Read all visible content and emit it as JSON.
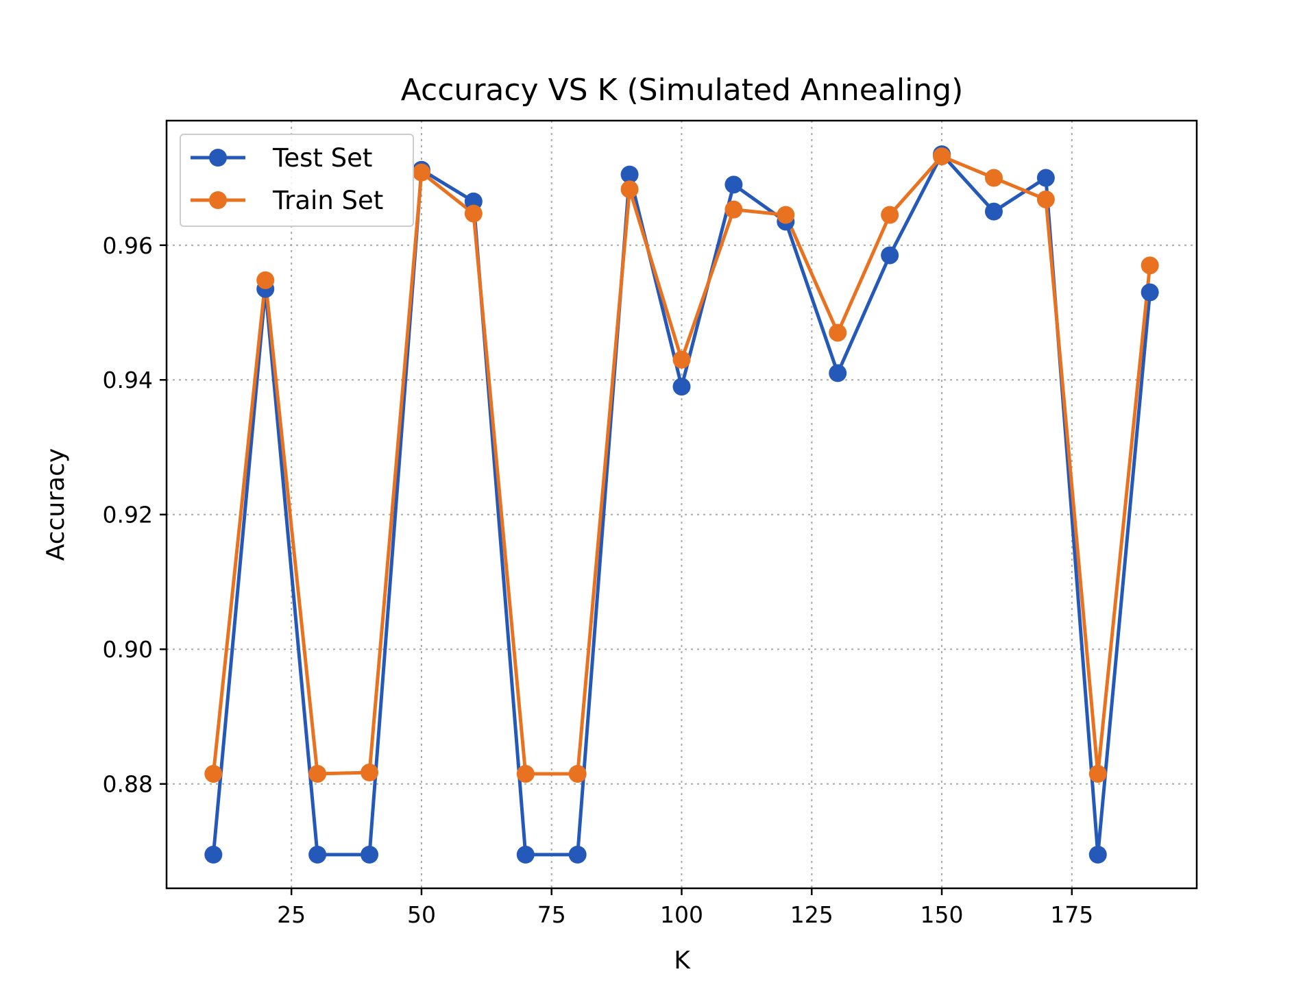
{
  "chart_data": {
    "type": "line",
    "title": "Accuracy VS K (Simulated Annealing)",
    "xlabel": "K",
    "ylabel": "Accuracy",
    "xlim": [
      1,
      199
    ],
    "ylim": [
      0.8645,
      0.9785
    ],
    "xticks": [
      25,
      50,
      75,
      100,
      125,
      150,
      175
    ],
    "xtick_labels": [
      "25",
      "50",
      "75",
      "100",
      "125",
      "150",
      "175"
    ],
    "yticks": [
      0.88,
      0.9,
      0.92,
      0.94,
      0.96
    ],
    "ytick_labels": [
      "0.88",
      "0.90",
      "0.92",
      "0.94",
      "0.96"
    ],
    "grid": true,
    "legend_position": "upper-left",
    "x": [
      10,
      20,
      30,
      40,
      50,
      60,
      70,
      80,
      90,
      100,
      110,
      120,
      130,
      140,
      150,
      160,
      170,
      180,
      190
    ],
    "series": [
      {
        "name": "Test Set",
        "color": "#2459b9",
        "marker": "circle",
        "values": [
          0.8695,
          0.9535,
          0.8695,
          0.8695,
          0.9712,
          0.9665,
          0.8695,
          0.8695,
          0.9705,
          0.939,
          0.969,
          0.9635,
          0.941,
          0.9585,
          0.9735,
          0.965,
          0.97,
          0.8695,
          0.953
        ]
      },
      {
        "name": "Train Set",
        "color": "#e8721f",
        "marker": "circle",
        "values": [
          0.8815,
          0.9548,
          0.8815,
          0.8817,
          0.9708,
          0.9647,
          0.8815,
          0.8815,
          0.9683,
          0.943,
          0.9653,
          0.9645,
          0.947,
          0.9645,
          0.9732,
          0.97,
          0.9668,
          0.8815,
          0.957
        ]
      }
    ]
  }
}
